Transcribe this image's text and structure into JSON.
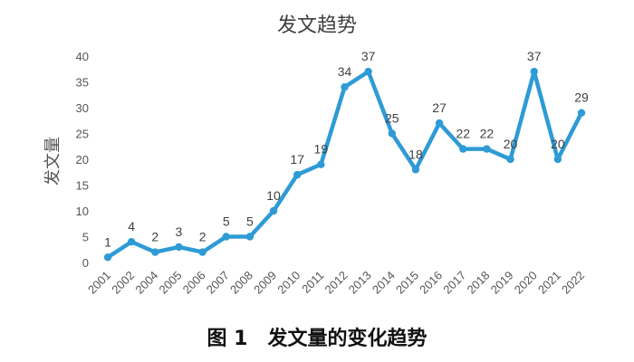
{
  "chart_data": {
    "type": "line",
    "title": "发文趋势",
    "ylabel": "发文量",
    "xlabel": "",
    "caption": "图 1　发文量的变化趋势",
    "ylim": [
      0,
      40
    ],
    "yticks": [
      0,
      5,
      10,
      15,
      20,
      25,
      30,
      35,
      40
    ],
    "grid": false,
    "categories": [
      "2001",
      "2002",
      "2004",
      "2005",
      "2006",
      "2007",
      "2008",
      "2009",
      "2010",
      "2011",
      "2012",
      "2013",
      "2014",
      "2015",
      "2016",
      "2017",
      "2018",
      "2019",
      "2020",
      "2021",
      "2022"
    ],
    "series": [
      {
        "values": [
          1,
          4,
          2,
          3,
          2,
          5,
          5,
          10,
          17,
          19,
          34,
          37,
          25,
          18,
          27,
          22,
          22,
          20,
          37,
          20,
          29
        ]
      }
    ],
    "line_color": "#2E9BD6",
    "data_labels": true
  }
}
